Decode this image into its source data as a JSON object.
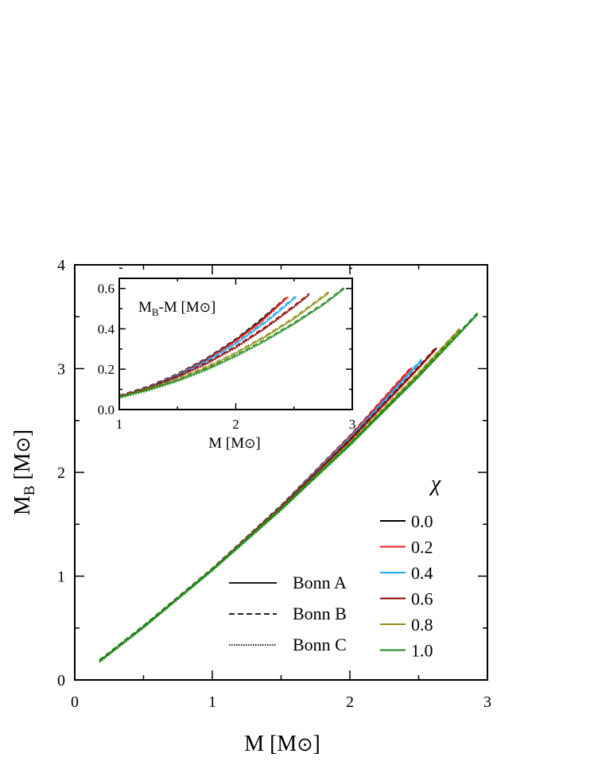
{
  "chart_data": [
    {
      "type": "line",
      "xlabel": {
        "main": "M",
        "unit_open": " [M",
        "unit_sym": "⊙",
        "unit_close": "]"
      },
      "ylabel": {
        "main": "M",
        "sub": "B",
        "unit_open": " [M",
        "unit_sym": "⊙",
        "unit_close": "]"
      },
      "xlim": [
        0,
        3
      ],
      "ylim": [
        0,
        4
      ],
      "xticks": [
        "0",
        "1",
        "2",
        "3"
      ],
      "yticks": [
        "0",
        "1",
        "2",
        "3",
        "4"
      ],
      "grid": false,
      "legend_title": "χ",
      "legend_position": "bottom-right",
      "series": [
        {
          "name": "0.0",
          "color": "#000000",
          "x": [
            0.18,
            0.5,
            1.0,
            1.5,
            2.0,
            2.43
          ],
          "y": [
            0.181,
            0.512,
            1.065,
            1.673,
            2.345,
            2.98
          ]
        },
        {
          "name": "0.2",
          "color": "#ff1a1a",
          "x": [
            0.18,
            0.5,
            1.0,
            1.5,
            2.0,
            2.45
          ],
          "y": [
            0.181,
            0.512,
            1.065,
            1.67,
            2.34,
            3.01
          ]
        },
        {
          "name": "0.4",
          "color": "#1ea7f0",
          "x": [
            0.18,
            0.5,
            1.0,
            1.5,
            2.0,
            2.52
          ],
          "y": [
            0.181,
            0.512,
            1.065,
            1.667,
            2.327,
            3.08
          ]
        },
        {
          "name": "0.6",
          "color": "#8b0000",
          "x": [
            0.18,
            0.5,
            1.0,
            1.5,
            2.0,
            2.5,
            2.63
          ],
          "y": [
            0.181,
            0.512,
            1.065,
            1.662,
            2.309,
            3.01,
            3.2
          ]
        },
        {
          "name": "0.8",
          "color": "#8f8f14",
          "x": [
            0.18,
            0.5,
            1.0,
            1.5,
            2.0,
            2.5,
            2.8
          ],
          "y": [
            0.181,
            0.511,
            1.062,
            1.649,
            2.279,
            2.952,
            3.38
          ]
        },
        {
          "name": "1.0",
          "color": "#1a8a1a",
          "x": [
            0.18,
            0.5,
            1.0,
            1.5,
            2.0,
            2.5,
            2.93
          ],
          "y": [
            0.181,
            0.511,
            1.06,
            1.643,
            2.265,
            2.926,
            3.53
          ]
        }
      ],
      "style_legend": [
        {
          "name": "Bonn A",
          "dash": "solid"
        },
        {
          "name": "Bonn B",
          "dash": "dashed"
        },
        {
          "name": "Bonn C",
          "dash": "dotted"
        }
      ]
    },
    {
      "type": "line",
      "inset": true,
      "xlabel": {
        "main": "M",
        "unit_open": " [M",
        "unit_sym": "⊙",
        "unit_close": "]"
      },
      "annotation": {
        "main": "M",
        "sub": "B",
        "rest": "-M [M",
        "unit_sym": "⊙",
        "unit_close": "]"
      },
      "xlim": [
        1,
        3
      ],
      "ylim": [
        0,
        0.65
      ],
      "xticks": [
        "1",
        "2",
        "3"
      ],
      "yticks": [
        "0.0",
        "0.2",
        "0.4",
        "0.6"
      ],
      "series": [
        {
          "name": "0.0",
          "color": "#000000",
          "x": [
            1.0,
            1.25,
            1.5,
            1.75,
            2.0,
            2.2,
            2.43
          ],
          "y": [
            0.065,
            0.111,
            0.173,
            0.25,
            0.345,
            0.435,
            0.55
          ]
        },
        {
          "name": "0.2",
          "color": "#ff1a1a",
          "x": [
            1.0,
            1.25,
            1.5,
            1.75,
            2.0,
            2.2,
            2.45
          ],
          "y": [
            0.065,
            0.11,
            0.17,
            0.245,
            0.34,
            0.425,
            0.56
          ]
        },
        {
          "name": "0.4",
          "color": "#1ea7f0",
          "x": [
            1.0,
            1.25,
            1.5,
            1.75,
            2.0,
            2.25,
            2.52
          ],
          "y": [
            0.065,
            0.109,
            0.167,
            0.24,
            0.327,
            0.43,
            0.56
          ]
        },
        {
          "name": "0.6",
          "color": "#8b0000",
          "x": [
            1.0,
            1.25,
            1.5,
            1.75,
            2.0,
            2.25,
            2.5,
            2.63
          ],
          "y": [
            0.065,
            0.107,
            0.162,
            0.229,
            0.309,
            0.403,
            0.51,
            0.57
          ]
        },
        {
          "name": "0.8",
          "color": "#8f8f14",
          "x": [
            1.0,
            1.25,
            1.5,
            1.75,
            2.0,
            2.25,
            2.5,
            2.8
          ],
          "y": [
            0.062,
            0.101,
            0.149,
            0.209,
            0.279,
            0.36,
            0.452,
            0.58
          ]
        },
        {
          "name": "1.0",
          "color": "#1a8a1a",
          "x": [
            1.0,
            1.25,
            1.5,
            1.75,
            2.0,
            2.25,
            2.5,
            2.75,
            2.93
          ],
          "y": [
            0.06,
            0.097,
            0.143,
            0.199,
            0.265,
            0.341,
            0.426,
            0.52,
            0.6
          ]
        }
      ]
    }
  ]
}
